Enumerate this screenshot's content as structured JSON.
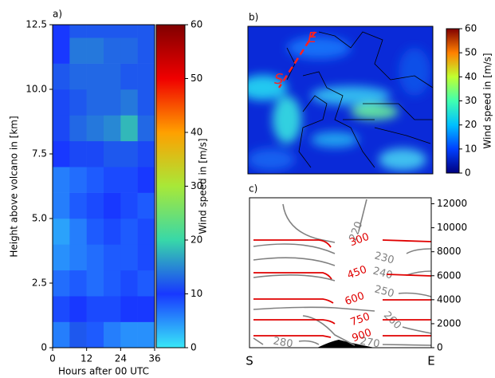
{
  "chart_data": [
    {
      "type": "heatmap",
      "label": "a)",
      "xlabel": "Hours after 00 UTC",
      "ylabel": "Height above volcano in [km]",
      "xbins": [
        0,
        6,
        12,
        18,
        24,
        30,
        36
      ],
      "ybins": [
        0,
        1,
        2,
        3,
        4,
        5,
        6,
        7,
        8,
        9,
        10,
        11,
        12,
        12.5
      ],
      "values": [
        [
          6,
          12,
          8,
          6,
          5,
          5
        ],
        [
          9,
          10,
          9,
          9,
          10,
          10
        ],
        [
          7,
          8,
          7,
          8,
          9,
          8
        ],
        [
          5,
          6,
          7,
          8,
          8,
          9
        ],
        [
          4,
          6,
          8,
          9,
          8,
          9
        ],
        [
          6,
          8,
          9,
          10,
          9,
          8
        ],
        [
          6,
          7,
          8,
          9,
          9,
          10
        ],
        [
          10,
          11,
          11,
          12,
          12,
          11
        ],
        [
          11,
          13,
          14,
          15,
          18,
          13
        ],
        [
          11,
          12,
          13,
          13,
          14,
          12
        ],
        [
          12,
          13,
          13,
          13,
          12,
          12
        ],
        [
          10,
          14,
          14,
          13,
          13,
          12
        ],
        [
          10,
          12,
          12,
          12,
          12,
          12
        ]
      ],
      "xlim": [
        0,
        36
      ],
      "xticks": [
        0,
        12,
        24,
        36
      ],
      "ylim": [
        0,
        12.5
      ],
      "yticks": [
        0,
        2.5,
        {
          "value": 5,
          "label": "5.0"
        },
        7.5,
        {
          "value": 10,
          "label": "10.0"
        },
        12.5
      ],
      "colorbar": {
        "label": "Wind speed in [m/s]",
        "lim": [
          0,
          60
        ],
        "ticks": [
          0,
          10,
          20,
          30,
          40,
          50,
          60
        ],
        "colors": [
          "#38e8f8",
          "#1838ff",
          "#38d8a8",
          "#a8e838",
          "#ffa000",
          "#f00000",
          "#800000"
        ]
      }
    },
    {
      "type": "map",
      "label": "b)",
      "annotations": [
        "S",
        "E"
      ],
      "colorbar": {
        "label": "Wind speed in [m/s]",
        "lim": [
          0,
          60
        ],
        "ticks": [
          0,
          10,
          20,
          30,
          40,
          50,
          60
        ],
        "colors": [
          "#000080",
          "#0040ff",
          "#00c0ff",
          "#40ffb0",
          "#c0ff30",
          "#ff8000",
          "#800000"
        ]
      }
    },
    {
      "type": "contour",
      "label": "c)",
      "categories": [
        "S",
        "E"
      ],
      "ylim": [
        0,
        12500
      ],
      "yticks": [
        0,
        2000,
        4000,
        6000,
        8000,
        10000,
        12000
      ],
      "contours": [
        {
          "value": 220,
          "color": "#808080"
        },
        {
          "value": 230,
          "color": "#808080"
        },
        {
          "value": 240,
          "color": "#808080"
        },
        {
          "value": 250,
          "color": "#808080"
        },
        {
          "value": 260,
          "color": "#808080"
        },
        {
          "value": 270,
          "color": "#808080"
        },
        {
          "value": 280,
          "color": "#808080"
        },
        {
          "value": 300,
          "color": "#e00000"
        },
        {
          "value": 450,
          "color": "#e00000"
        },
        {
          "value": 600,
          "color": "#e00000"
        },
        {
          "value": 750,
          "color": "#e00000"
        },
        {
          "value": 900,
          "color": "#e00000"
        }
      ]
    }
  ]
}
